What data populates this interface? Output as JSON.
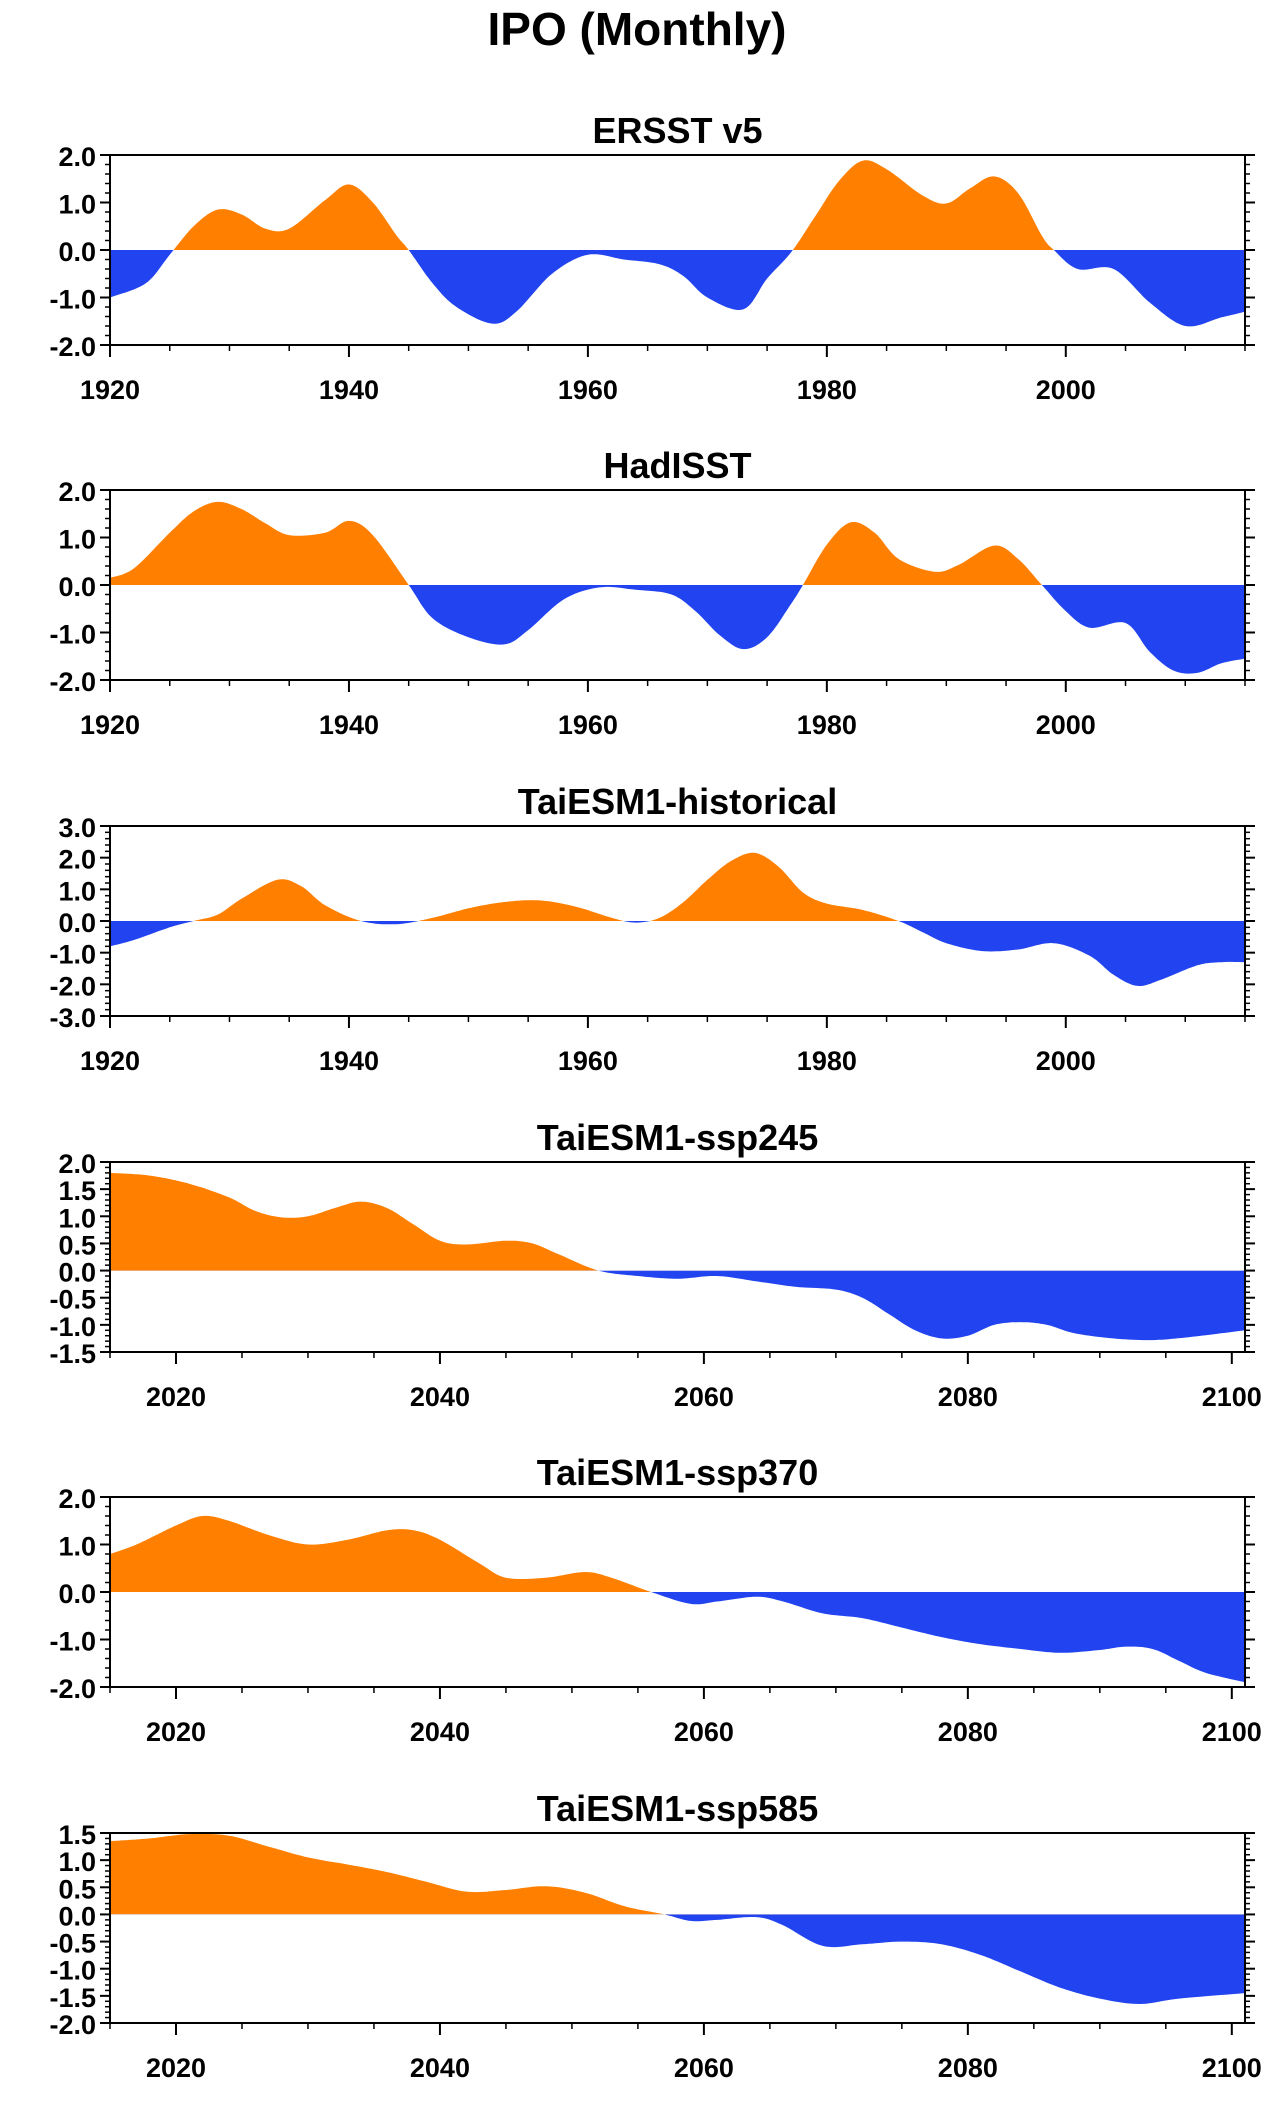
{
  "figure": {
    "title": "IPO (Monthly)"
  },
  "colors": {
    "positive": "#ff8000",
    "negative": "#2143f0",
    "axis": "#000000"
  },
  "chart_data": [
    {
      "type": "area",
      "title": "ERSST v5",
      "xlim": [
        1920,
        2015
      ],
      "ylim": [
        -2.0,
        2.0
      ],
      "xticks": [
        1920,
        1940,
        1960,
        1980,
        2000
      ],
      "xtick_labels": [
        "1920",
        "1940",
        "1960",
        "1980",
        "2000"
      ],
      "yticks": [
        -2.0,
        -1.0,
        0.0,
        1.0,
        2.0
      ],
      "ytick_labels": [
        "-2.0",
        "-1.0",
        "0.0",
        "1.0",
        "2.0"
      ],
      "x": [
        1920,
        1923,
        1925,
        1927,
        1929,
        1931,
        1933,
        1935,
        1938,
        1940,
        1942,
        1944,
        1945,
        1947,
        1949,
        1952,
        1954,
        1957,
        1960,
        1963,
        1966,
        1968,
        1970,
        1973,
        1975,
        1977,
        1979,
        1981,
        1983,
        1985,
        1988,
        1990,
        1992,
        1994,
        1996,
        1998,
        1999,
        2001,
        2004,
        2007,
        2010,
        2013,
        2015
      ],
      "y": [
        -1.0,
        -0.7,
        -0.1,
        0.5,
        0.85,
        0.75,
        0.45,
        0.45,
        1.05,
        1.38,
        1.0,
        0.3,
        0.0,
        -0.7,
        -1.2,
        -1.55,
        -1.3,
        -0.5,
        -0.1,
        -0.2,
        -0.3,
        -0.55,
        -1.0,
        -1.25,
        -0.6,
        -0.05,
        0.7,
        1.45,
        1.88,
        1.7,
        1.15,
        0.98,
        1.3,
        1.55,
        1.2,
        0.3,
        0.0,
        -0.4,
        -0.4,
        -1.1,
        -1.6,
        -1.42,
        -1.3
      ]
    },
    {
      "type": "area",
      "title": "HadISST",
      "xlim": [
        1920,
        2015
      ],
      "ylim": [
        -2.0,
        2.0
      ],
      "xticks": [
        1920,
        1940,
        1960,
        1980,
        2000
      ],
      "xtick_labels": [
        "1920",
        "1940",
        "1960",
        "1980",
        "2000"
      ],
      "yticks": [
        -2.0,
        -1.0,
        0.0,
        1.0,
        2.0
      ],
      "ytick_labels": [
        "-2.0",
        "-1.0",
        "0.0",
        "1.0",
        "2.0"
      ],
      "x": [
        1920,
        1922,
        1925,
        1927,
        1929,
        1931,
        1933,
        1935,
        1938,
        1940,
        1942,
        1945,
        1947,
        1950,
        1953,
        1955,
        1958,
        1961,
        1964,
        1967,
        1969,
        1971,
        1973,
        1975,
        1977,
        1978,
        1980,
        1982,
        1984,
        1986,
        1989,
        1991,
        1994,
        1996,
        1998,
        2000,
        2002,
        2005,
        2007,
        2009,
        2011,
        2013,
        2015
      ],
      "y": [
        0.15,
        0.35,
        1.1,
        1.55,
        1.75,
        1.6,
        1.3,
        1.05,
        1.1,
        1.35,
        1.05,
        0.0,
        -0.7,
        -1.1,
        -1.25,
        -0.95,
        -0.3,
        -0.05,
        -0.1,
        -0.2,
        -0.55,
        -1.05,
        -1.35,
        -1.1,
        -0.4,
        0.0,
        0.85,
        1.32,
        1.1,
        0.55,
        0.28,
        0.42,
        0.83,
        0.55,
        0.0,
        -0.55,
        -0.9,
        -0.8,
        -1.4,
        -1.8,
        -1.85,
        -1.65,
        -1.55
      ]
    },
    {
      "type": "area",
      "title": "TaiESM1-historical",
      "xlim": [
        1920,
        2015
      ],
      "ylim": [
        -3.0,
        3.0
      ],
      "xticks": [
        1920,
        1940,
        1960,
        1980,
        2000
      ],
      "xtick_labels": [
        "1920",
        "1940",
        "1960",
        "1980",
        "2000"
      ],
      "yticks": [
        -3.0,
        -2.0,
        -1.0,
        0.0,
        1.0,
        2.0,
        3.0
      ],
      "ytick_labels": [
        "-3.0",
        "-2.0",
        "-1.0",
        "0.0",
        "1.0",
        "2.0",
        "3.0"
      ],
      "x": [
        1920,
        1922,
        1925,
        1927,
        1929,
        1931,
        1934,
        1936,
        1938,
        1941,
        1944,
        1947,
        1950,
        1953,
        1956,
        1959,
        1962,
        1964,
        1966,
        1968,
        1970,
        1972,
        1974,
        1976,
        1978,
        1980,
        1983,
        1986,
        1988,
        1990,
        1993,
        1996,
        1999,
        2002,
        2004,
        2006,
        2008,
        2011,
        2013,
        2015
      ],
      "y": [
        -0.8,
        -0.6,
        -0.2,
        0.0,
        0.2,
        0.7,
        1.3,
        1.1,
        0.5,
        0.0,
        -0.1,
        0.1,
        0.4,
        0.6,
        0.65,
        0.45,
        0.1,
        -0.05,
        0.1,
        0.6,
        1.3,
        1.9,
        2.15,
        1.7,
        0.9,
        0.55,
        0.35,
        0.0,
        -0.35,
        -0.7,
        -0.95,
        -0.9,
        -0.7,
        -1.1,
        -1.7,
        -2.05,
        -1.85,
        -1.4,
        -1.3,
        -1.3
      ]
    },
    {
      "type": "area",
      "title": "TaiESM1-ssp245",
      "xlim": [
        2015,
        2101
      ],
      "ylim": [
        -1.5,
        2.0
      ],
      "xticks": [
        2020,
        2040,
        2060,
        2080,
        2100
      ],
      "xtick_labels": [
        "2020",
        "2040",
        "2060",
        "2080",
        "2100"
      ],
      "yticks": [
        -1.5,
        -1.0,
        -0.5,
        0.0,
        0.5,
        1.0,
        1.5,
        2.0
      ],
      "ytick_labels": [
        "-1.5",
        "-1.0",
        "-0.5",
        "0.0",
        "0.5",
        "1.0",
        "1.5",
        "2.0"
      ],
      "x": [
        2015,
        2018,
        2021,
        2024,
        2026,
        2028,
        2030,
        2032,
        2034,
        2036,
        2038,
        2040,
        2042,
        2045,
        2047,
        2049,
        2052,
        2055,
        2058,
        2061,
        2064,
        2067,
        2070,
        2072,
        2074,
        2076,
        2078,
        2080,
        2082,
        2084,
        2086,
        2088,
        2091,
        2094,
        2097,
        2101
      ],
      "y": [
        1.8,
        1.75,
        1.6,
        1.35,
        1.1,
        0.98,
        1.0,
        1.15,
        1.27,
        1.15,
        0.85,
        0.55,
        0.48,
        0.55,
        0.5,
        0.3,
        0.0,
        -0.1,
        -0.15,
        -0.1,
        -0.2,
        -0.3,
        -0.35,
        -0.5,
        -0.8,
        -1.1,
        -1.25,
        -1.2,
        -1.0,
        -0.95,
        -1.0,
        -1.15,
        -1.25,
        -1.28,
        -1.22,
        -1.1
      ]
    },
    {
      "type": "area",
      "title": "TaiESM1-ssp370",
      "xlim": [
        2015,
        2101
      ],
      "ylim": [
        -2.0,
        2.0
      ],
      "xticks": [
        2020,
        2040,
        2060,
        2080,
        2100
      ],
      "xtick_labels": [
        "2020",
        "2040",
        "2060",
        "2080",
        "2100"
      ],
      "yticks": [
        -2.0,
        -1.0,
        0.0,
        1.0,
        2.0
      ],
      "ytick_labels": [
        "-2.0",
        "-1.0",
        "0.0",
        "1.0",
        "2.0"
      ],
      "x": [
        2015,
        2017,
        2020,
        2022,
        2024,
        2027,
        2030,
        2033,
        2036,
        2038,
        2040,
        2043,
        2045,
        2048,
        2051,
        2053,
        2056,
        2059,
        2061,
        2064,
        2066,
        2069,
        2072,
        2075,
        2078,
        2081,
        2084,
        2087,
        2090,
        2092,
        2094,
        2096,
        2098,
        2101
      ],
      "y": [
        0.8,
        1.0,
        1.4,
        1.6,
        1.5,
        1.2,
        1.0,
        1.1,
        1.3,
        1.3,
        1.1,
        0.6,
        0.3,
        0.3,
        0.42,
        0.3,
        0.0,
        -0.25,
        -0.2,
        -0.1,
        -0.2,
        -0.45,
        -0.55,
        -0.75,
        -0.95,
        -1.1,
        -1.2,
        -1.28,
        -1.22,
        -1.15,
        -1.2,
        -1.45,
        -1.7,
        -1.9
      ]
    },
    {
      "type": "area",
      "title": "TaiESM1-ssp585",
      "xlim": [
        2015,
        2101
      ],
      "ylim": [
        -2.0,
        1.5
      ],
      "xticks": [
        2020,
        2040,
        2060,
        2080,
        2100
      ],
      "xtick_labels": [
        "2020",
        "2040",
        "2060",
        "2080",
        "2100"
      ],
      "yticks": [
        -2.0,
        -1.5,
        -1.0,
        -0.5,
        0.0,
        0.5,
        1.0,
        1.5
      ],
      "ytick_labels": [
        "-2.0",
        "-1.5",
        "-1.0",
        "-0.5",
        "0.0",
        "0.5",
        "1.0",
        "1.5"
      ],
      "x": [
        2015,
        2018,
        2021,
        2024,
        2027,
        2030,
        2033,
        2036,
        2039,
        2042,
        2045,
        2048,
        2051,
        2054,
        2057,
        2059,
        2061,
        2064,
        2066,
        2069,
        2072,
        2075,
        2078,
        2081,
        2084,
        2087,
        2090,
        2093,
        2096,
        2101
      ],
      "y": [
        1.35,
        1.4,
        1.48,
        1.45,
        1.25,
        1.05,
        0.92,
        0.78,
        0.6,
        0.42,
        0.45,
        0.52,
        0.4,
        0.15,
        0.0,
        -0.12,
        -0.1,
        -0.05,
        -0.2,
        -0.58,
        -0.55,
        -0.5,
        -0.55,
        -0.75,
        -1.05,
        -1.35,
        -1.55,
        -1.65,
        -1.55,
        -1.45
      ]
    }
  ]
}
